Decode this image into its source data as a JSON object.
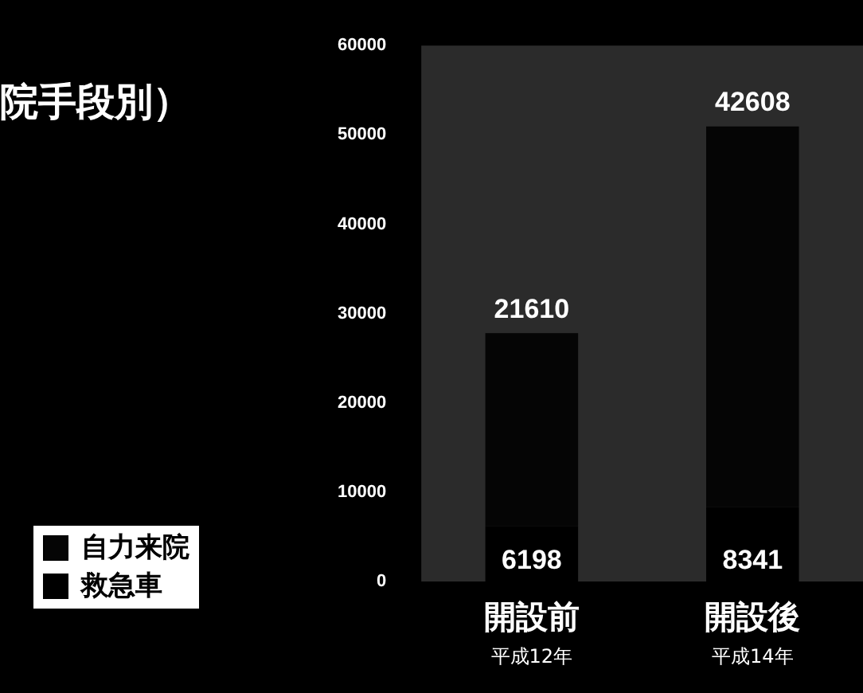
{
  "chart_data": {
    "type": "bar",
    "title": "院手段別）",
    "stacked": true,
    "categories": [
      "開設前",
      "開設後"
    ],
    "annotations": [
      "平成12年",
      "平成14年"
    ],
    "series": [
      {
        "name": "救急車",
        "color": "#000000",
        "values": [
          6198,
          8341
        ]
      },
      {
        "name": "自力来院",
        "color": "#050505",
        "values": [
          21610,
          42608
        ]
      }
    ],
    "ylim": [
      0,
      60000
    ],
    "yticks": [
      0,
      10000,
      20000,
      30000,
      40000,
      50000,
      60000
    ],
    "data_labels": true,
    "legend": "bottom left",
    "grid": false
  }
}
